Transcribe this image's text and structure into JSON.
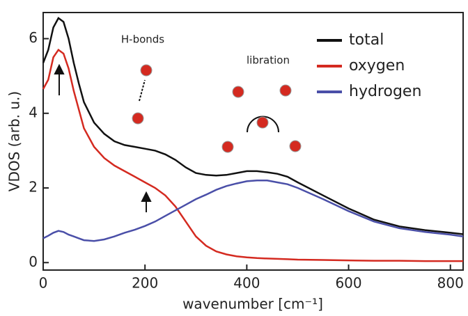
{
  "chart_data": {
    "type": "line",
    "xlabel": "wavenumber [cm⁻¹]",
    "ylabel": "VDOS (arb. u.)",
    "annotations": [
      "H-bonds",
      "libration"
    ],
    "x": [
      0,
      10,
      20,
      30,
      40,
      50,
      60,
      70,
      80,
      100,
      120,
      140,
      160,
      180,
      200,
      220,
      240,
      260,
      280,
      300,
      320,
      340,
      360,
      380,
      400,
      420,
      440,
      460,
      480,
      500,
      550,
      600,
      650,
      700,
      750,
      800,
      825
    ],
    "series": [
      {
        "name": "total",
        "color": "#111111",
        "values": [
          5.35,
          5.7,
          6.3,
          6.55,
          6.45,
          6.0,
          5.35,
          4.8,
          4.3,
          3.75,
          3.45,
          3.25,
          3.15,
          3.1,
          3.05,
          3.0,
          2.9,
          2.75,
          2.55,
          2.4,
          2.35,
          2.33,
          2.35,
          2.4,
          2.45,
          2.45,
          2.42,
          2.38,
          2.3,
          2.15,
          1.8,
          1.45,
          1.15,
          0.97,
          0.87,
          0.8,
          0.76
        ]
      },
      {
        "name": "oxygen",
        "color": "#d42a20",
        "values": [
          4.65,
          4.9,
          5.5,
          5.7,
          5.6,
          5.2,
          4.6,
          4.1,
          3.6,
          3.1,
          2.8,
          2.6,
          2.45,
          2.3,
          2.15,
          2.0,
          1.8,
          1.5,
          1.1,
          0.7,
          0.45,
          0.3,
          0.22,
          0.17,
          0.14,
          0.12,
          0.11,
          0.1,
          0.09,
          0.08,
          0.07,
          0.06,
          0.05,
          0.05,
          0.04,
          0.04,
          0.04
        ]
      },
      {
        "name": "hydrogen",
        "color": "#4a4fa8",
        "values": [
          0.65,
          0.72,
          0.8,
          0.85,
          0.82,
          0.75,
          0.7,
          0.65,
          0.6,
          0.58,
          0.62,
          0.7,
          0.8,
          0.88,
          0.98,
          1.1,
          1.25,
          1.4,
          1.55,
          1.7,
          1.82,
          1.95,
          2.05,
          2.12,
          2.18,
          2.2,
          2.2,
          2.15,
          2.1,
          2.0,
          1.7,
          1.38,
          1.1,
          0.92,
          0.82,
          0.75,
          0.7
        ]
      }
    ],
    "xlim": [
      0,
      825
    ],
    "xticks": [
      0,
      200,
      400,
      600,
      800
    ],
    "ylim": [
      -0.2,
      6.7
    ],
    "yticks": [
      0,
      2,
      4,
      6
    ],
    "grid": false,
    "legend": "upper right"
  }
}
